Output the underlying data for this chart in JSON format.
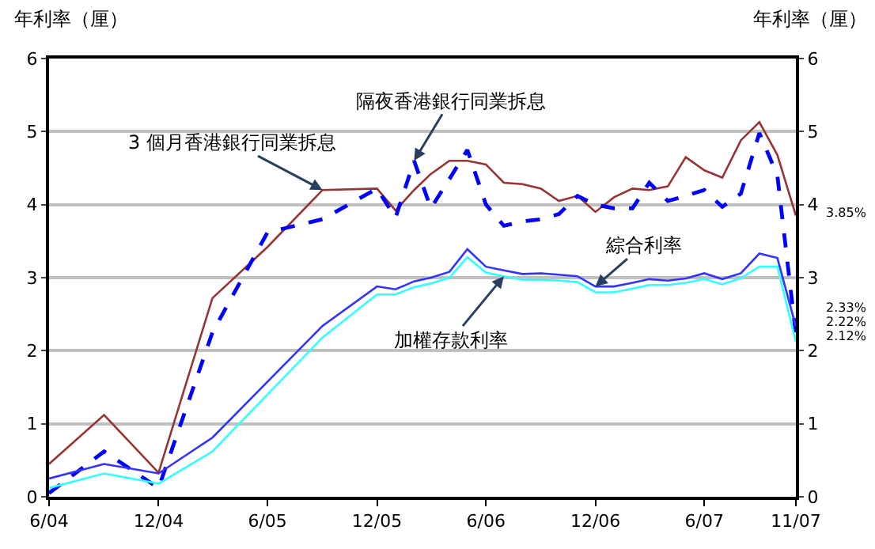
{
  "chart_data": {
    "type": "line",
    "ylabel": "年利率（厘）",
    "y2label": "年利率（厘）",
    "x": [
      "2004-06",
      "2004-09",
      "2004-12",
      "2005-03",
      "2005-06",
      "2005-09",
      "2005-12",
      "2006-01",
      "2006-02",
      "2006-03",
      "2006-04",
      "2006-05",
      "2006-06",
      "2006-07",
      "2006-08",
      "2006-09",
      "2006-10",
      "2006-11",
      "2006-12",
      "2007-01",
      "2007-02",
      "2007-03",
      "2007-04",
      "2007-05",
      "2007-06",
      "2007-07",
      "2007-08",
      "2007-09",
      "2007-10",
      "2007-11"
    ],
    "series": [
      {
        "color": "#993333",
        "line_style": "solid",
        "values": [
          0.45,
          1.12,
          0.33,
          2.72,
          3.42,
          4.2,
          4.22,
          3.92,
          4.2,
          4.42,
          4.6,
          4.6,
          4.55,
          4.3,
          4.28,
          4.22,
          4.05,
          4.12,
          3.9,
          4.1,
          4.22,
          4.2,
          4.25,
          4.65,
          4.47,
          4.37,
          4.88,
          5.13,
          4.68,
          3.85
        ]
      },
      {
        "color": "#0000ff",
        "line_style": "dashed",
        "values": [
          0.05,
          0.62,
          0.12,
          2.25,
          3.62,
          3.8,
          4.22,
          3.82,
          4.6,
          3.95,
          4.35,
          4.75,
          4.0,
          3.71,
          3.77,
          3.8,
          3.87,
          4.12,
          4.0,
          3.95,
          3.95,
          4.3,
          4.05,
          4.12,
          4.2,
          3.97,
          4.15,
          4.98,
          4.4,
          2.22
        ]
      },
      {
        "color": "#3333ff",
        "line_style": "solid",
        "values": [
          0.25,
          0.45,
          0.32,
          0.81,
          null,
          2.34,
          2.88,
          2.84,
          2.95,
          3.0,
          3.08,
          3.39,
          3.15,
          3.1,
          3.05,
          3.06,
          3.04,
          3.02,
          2.88,
          2.88,
          2.93,
          2.98,
          2.96,
          2.99,
          3.06,
          2.98,
          3.06,
          3.33,
          3.27,
          2.33
        ]
      },
      {
        "color": "#33ffff",
        "line_style": "solid",
        "values": [
          0.12,
          0.32,
          0.18,
          0.62,
          null,
          2.18,
          2.77,
          2.77,
          2.87,
          2.92,
          3.0,
          3.28,
          3.07,
          3.02,
          2.97,
          2.97,
          2.96,
          2.94,
          2.8,
          2.8,
          2.85,
          2.9,
          2.9,
          2.93,
          2.98,
          2.91,
          2.99,
          3.15,
          3.15,
          2.12
        ]
      }
    ],
    "xlim": [
      "2004-06",
      "2007-11"
    ],
    "xticks": [
      {
        "value": "2004-06",
        "label": "6/04"
      },
      {
        "value": "2004-12",
        "label": "12/04"
      },
      {
        "value": "2005-06",
        "label": "6/05"
      },
      {
        "value": "2005-12",
        "label": "12/05"
      },
      {
        "value": "2006-06",
        "label": "6/06"
      },
      {
        "value": "2006-12",
        "label": "12/06"
      },
      {
        "value": "2007-06",
        "label": "6/07"
      },
      {
        "value": "2007-11",
        "label": "11/07"
      }
    ],
    "ylim": [
      0,
      6
    ],
    "yticks": [
      0,
      1,
      2,
      3,
      4,
      5,
      6
    ],
    "y2lim": [
      0,
      6
    ],
    "y2ticks": [
      0,
      1,
      2,
      3,
      4,
      5,
      6
    ],
    "grid": "y",
    "legend": false,
    "marker": "none",
    "annotations": [
      {
        "text": "3 個月香港銀行同業拆息",
        "x": "2005-09",
        "y": 4.2
      },
      {
        "text": "隔夜香港銀行同業拆息",
        "x": "2006-02",
        "y": 4.6
      },
      {
        "text": "綜合利率",
        "x": "2006-12",
        "y": 2.88
      },
      {
        "text": "加權存款利率",
        "x": "2006-07",
        "y": 3.02
      },
      {
        "text": "3.85%",
        "x": "2007-11",
        "y": 3.85
      },
      {
        "text": "2.33%",
        "x": "2007-11",
        "y": 2.33
      },
      {
        "text": "2.22%",
        "x": "2007-11",
        "y": 2.22
      },
      {
        "text": "2.12%",
        "x": "2007-11",
        "y": 2.12
      }
    ]
  }
}
